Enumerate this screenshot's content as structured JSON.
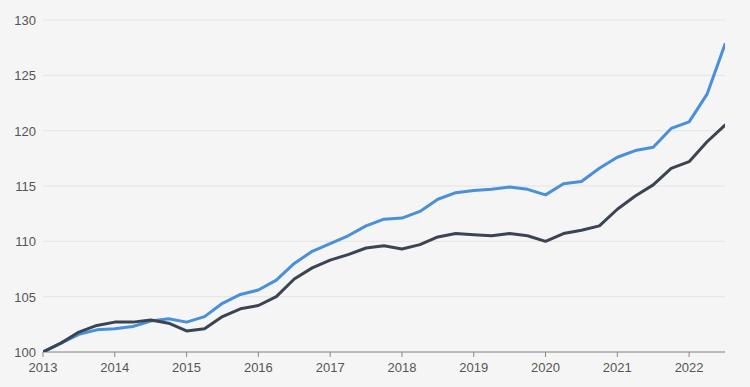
{
  "chart_data": {
    "type": "line",
    "x": [
      2013,
      2013.25,
      2013.5,
      2013.75,
      2014,
      2014.25,
      2014.5,
      2014.75,
      2015,
      2015.25,
      2015.5,
      2015.75,
      2016,
      2016.25,
      2016.5,
      2016.75,
      2017,
      2017.25,
      2017.5,
      2017.75,
      2018,
      2018.25,
      2018.5,
      2018.75,
      2019,
      2019.25,
      2019.5,
      2019.75,
      2020,
      2020.25,
      2020.5,
      2020.75,
      2021,
      2021.25,
      2021.5,
      2021.75,
      2022,
      2022.25,
      2022.5
    ],
    "series": [
      {
        "color": "#4a90d9",
        "values": [
          100,
          100.8,
          101.6,
          102.0,
          102.1,
          102.3,
          102.8,
          103.0,
          102.7,
          103.2,
          104.4,
          105.2,
          105.6,
          106.5,
          108.0,
          109.1,
          109.8,
          110.5,
          111.4,
          112.0,
          112.1,
          112.7,
          113.8,
          114.4,
          114.6,
          114.7,
          114.9,
          114.7,
          114.2,
          115.2,
          115.4,
          116.6,
          117.6,
          118.2,
          118.5,
          120.2,
          120.8,
          123.3,
          127.8
        ]
      },
      {
        "color": "#3b4452",
        "values": [
          100,
          100.8,
          101.8,
          102.4,
          102.7,
          102.7,
          102.9,
          102.6,
          101.9,
          102.1,
          103.2,
          103.9,
          104.2,
          105.0,
          106.6,
          107.6,
          108.3,
          108.8,
          109.4,
          109.6,
          109.3,
          109.7,
          110.4,
          110.7,
          110.6,
          110.5,
          110.7,
          110.5,
          110.0,
          110.7,
          111.0,
          111.4,
          112.9,
          114.1,
          115.1,
          116.6,
          117.2,
          119.0,
          120.5
        ]
      }
    ],
    "xlim": [
      2013,
      2022.5
    ],
    "xticks": [
      2013,
      2014,
      2015,
      2016,
      2017,
      2018,
      2019,
      2020,
      2021,
      2022
    ],
    "ylim": [
      100,
      130
    ],
    "yticks": [
      100,
      105,
      110,
      115,
      120,
      125,
      130
    ],
    "grid": true
  }
}
